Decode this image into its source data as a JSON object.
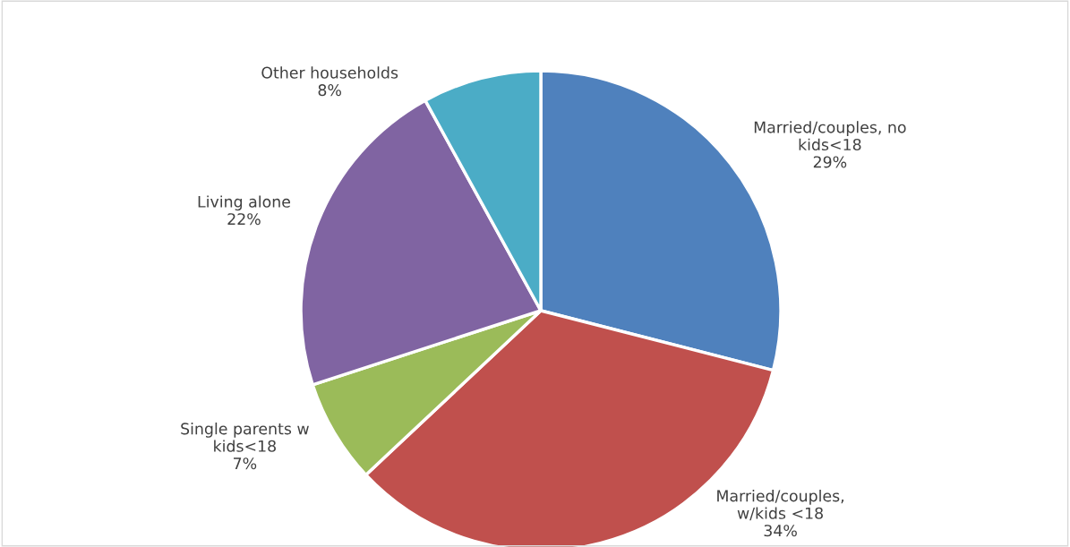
{
  "chart_data": {
    "type": "pie",
    "categories": [
      "Married/couples, no kids<18",
      "Married/couples, w/kids <18",
      "Single parents w kids<18",
      "Living alone",
      "Other households"
    ],
    "values": [
      29,
      34,
      7,
      22,
      8
    ],
    "colors": [
      "#4f81bd",
      "#c0504d",
      "#9bbb59",
      "#8064a2",
      "#4bacc6"
    ],
    "value_labels": [
      "29%",
      "34%",
      "7%",
      "22%",
      "8%"
    ],
    "legend": false
  }
}
